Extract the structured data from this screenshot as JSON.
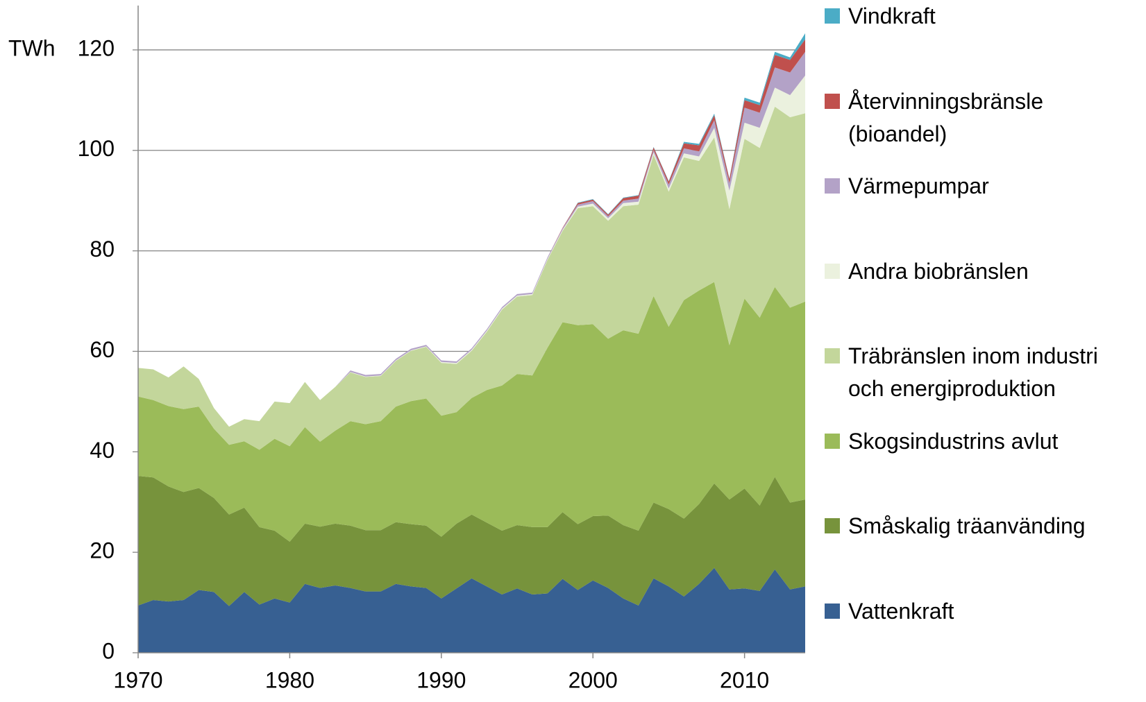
{
  "chart_data": {
    "type": "stacked-area",
    "y_label": "TWh",
    "x": [
      1970,
      1971,
      1972,
      1973,
      1974,
      1975,
      1976,
      1977,
      1978,
      1979,
      1980,
      1981,
      1982,
      1983,
      1984,
      1985,
      1986,
      1987,
      1988,
      1989,
      1990,
      1991,
      1992,
      1993,
      1994,
      1995,
      1996,
      1997,
      1998,
      1999,
      2000,
      2001,
      2002,
      2003,
      2004,
      2005,
      2006,
      2007,
      2008,
      2009,
      2010,
      2011,
      2012,
      2013,
      2014
    ],
    "xlim": [
      1970,
      2014
    ],
    "xticks": [
      1970,
      1980,
      1990,
      2000,
      2010
    ],
    "ylim": [
      0,
      128
    ],
    "yticks": [
      0,
      20,
      40,
      60,
      80,
      100,
      120
    ],
    "grid": true,
    "series": [
      {
        "name": "Vattenkraft",
        "color": "#376092",
        "values": [
          9.4,
          10.5,
          10.2,
          10.5,
          12.5,
          12.1,
          9.3,
          12.1,
          9.6,
          10.8,
          10.0,
          13.7,
          12.9,
          13.4,
          12.9,
          12.2,
          12.2,
          13.7,
          13.2,
          12.9,
          10.8,
          12.8,
          14.8,
          13.2,
          11.6,
          12.8,
          11.6,
          11.8,
          14.7,
          12.5,
          14.4,
          12.9,
          10.8,
          9.4,
          14.8,
          13.2,
          11.2,
          13.7,
          16.9,
          12.6,
          12.8,
          12.3,
          16.6,
          12.6,
          13.2
        ]
      },
      {
        "name": "Småskalig träanvänding",
        "color": "#77933c",
        "values": [
          25.8,
          24.4,
          22.9,
          21.5,
          20.3,
          18.7,
          18.2,
          16.8,
          15.4,
          13.5,
          12.1,
          12.0,
          12.2,
          12.3,
          12.4,
          12.2,
          12.2,
          12.3,
          12.4,
          12.4,
          12.3,
          12.9,
          12.7,
          12.7,
          12.7,
          12.6,
          13.4,
          13.2,
          13.3,
          13.1,
          12.8,
          14.4,
          14.6,
          14.9,
          15.1,
          15.4,
          15.5,
          15.9,
          16.8,
          17.9,
          19.9,
          17.0,
          18.4,
          17.3,
          17.3
        ]
      },
      {
        "name": "Skogsindustrins avlut",
        "color": "#9bbb59",
        "values": [
          15.8,
          15.4,
          16.0,
          16.5,
          16.2,
          13.8,
          13.9,
          13.2,
          15.4,
          18.3,
          19.0,
          19.2,
          16.9,
          18.5,
          20.8,
          21.1,
          21.7,
          23.0,
          24.5,
          25.3,
          24.1,
          22.2,
          23.2,
          26.4,
          28.9,
          30.1,
          30.2,
          35.7,
          37.8,
          39.6,
          38.2,
          35.2,
          38.8,
          39.2,
          41.1,
          36.3,
          43.5,
          42.5,
          40.1,
          30.7,
          37.8,
          37.4,
          37.8,
          38.8,
          39.4
        ]
      },
      {
        "name": "Träbränslen inom industri och energiproduktion",
        "color": "#c3d69b",
        "values": [
          5.7,
          6.1,
          5.7,
          8.5,
          5.5,
          4.1,
          3.6,
          4.4,
          5.7,
          7.4,
          8.6,
          9.0,
          8.3,
          8.7,
          9.7,
          9.4,
          9.0,
          9.1,
          10.0,
          10.3,
          10.5,
          9.6,
          9.4,
          11.6,
          15.1,
          15.4,
          16.0,
          17.5,
          18.2,
          23.3,
          23.5,
          23.5,
          24.7,
          25.7,
          28.1,
          26.9,
          28.4,
          25.8,
          28.8,
          27.1,
          31.8,
          33.8,
          35.9,
          37.9,
          37.5
        ]
      },
      {
        "name": "Andra biobränslen",
        "color": "#ebf1de",
        "values": [
          0,
          0,
          0,
          0,
          0,
          0,
          0,
          0,
          0,
          0,
          0,
          0,
          0,
          0,
          0.1,
          0.1,
          0.1,
          0.1,
          0.1,
          0.1,
          0.2,
          0.2,
          0.2,
          0.2,
          0.2,
          0.2,
          0.2,
          0.2,
          0.2,
          0.3,
          0.5,
          0.5,
          0.6,
          0.6,
          0.5,
          0.6,
          0.8,
          0.9,
          1.9,
          3.7,
          3.2,
          4.0,
          3.8,
          4.4,
          7.5
        ]
      },
      {
        "name": "Värmepumpar",
        "color": "#b3a2c7",
        "values": [
          0,
          0,
          0,
          0,
          0,
          0,
          0,
          0,
          0,
          0,
          0,
          0,
          0,
          0,
          0.3,
          0.3,
          0.3,
          0.3,
          0.3,
          0.3,
          0.3,
          0.3,
          0.3,
          0.3,
          0.3,
          0.3,
          0.3,
          0.3,
          0.3,
          0.4,
          0.5,
          0.4,
          0.5,
          0.6,
          0.5,
          0.8,
          1.0,
          1.0,
          1.5,
          1.5,
          3.0,
          3.0,
          4.0,
          4.5,
          4.7
        ]
      },
      {
        "name": "Återvinningsbränsle (bioandel)",
        "color": "#c0504d",
        "values": [
          0,
          0,
          0,
          0,
          0,
          0,
          0,
          0,
          0,
          0,
          0,
          0,
          0,
          0,
          0,
          0,
          0,
          0,
          0,
          0,
          0,
          0,
          0,
          0,
          0,
          0,
          0,
          0,
          0.1,
          0.3,
          0.3,
          0.3,
          0.5,
          0.6,
          0.5,
          0.6,
          1.0,
          1.2,
          1.0,
          0.8,
          1.5,
          1.5,
          2.5,
          2.5,
          2.5
        ]
      },
      {
        "name": "Vindkraft",
        "color": "#4bacc6",
        "values": [
          0,
          0,
          0,
          0,
          0,
          0,
          0,
          0,
          0,
          0,
          0,
          0,
          0,
          0,
          0,
          0,
          0,
          0,
          0,
          0,
          0,
          0,
          0,
          0,
          0,
          0,
          0,
          0,
          0,
          0.1,
          0.1,
          0.1,
          0.1,
          0.1,
          0.1,
          0.1,
          0.3,
          0.3,
          0.3,
          0.1,
          0.5,
          0.5,
          0.6,
          0.5,
          1.2
        ]
      }
    ]
  }
}
